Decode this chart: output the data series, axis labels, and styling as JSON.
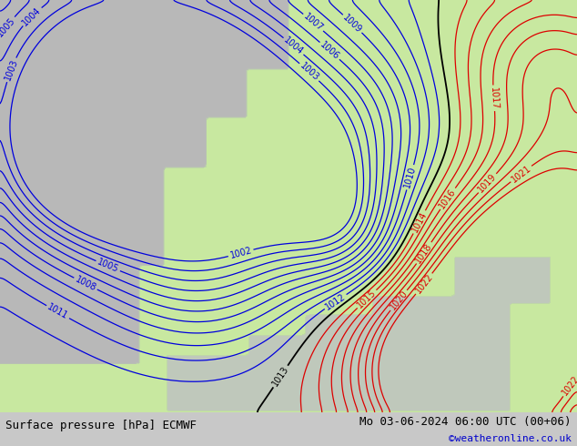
{
  "title_left": "Surface pressure [hPa] ECMWF",
  "title_right": "Mo 03-06-2024 06:00 UTC (00+06)",
  "watermark": "©weatheronline.co.uk",
  "bg_color": "#c8c8c8",
  "land_color": "#c8e8a0",
  "sea_color": "#b8b8b8",
  "fig_width": 6.34,
  "fig_height": 4.9,
  "dpi": 100,
  "bottom_bar_color": "#ffffff",
  "contour_blue_color": "#0000dd",
  "contour_black_color": "#000000",
  "contour_red_color": "#dd0000",
  "label_fontsize": 7,
  "footer_fontsize": 9
}
